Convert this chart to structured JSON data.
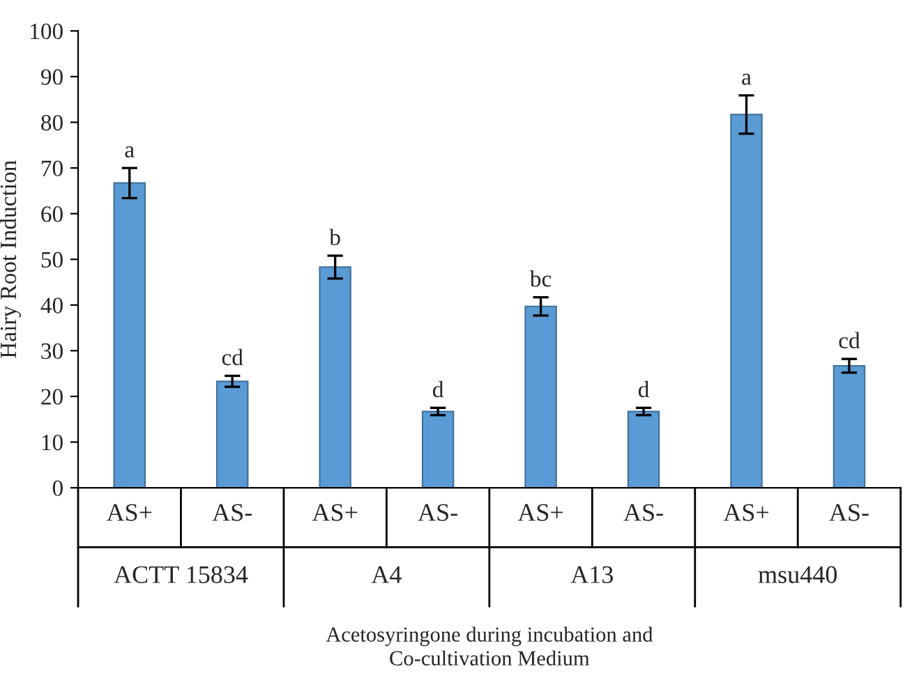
{
  "chart_data": {
    "type": "bar",
    "ylabel": "Hairy Root Induction",
    "xlabel": "Acetosyringone during incubation and\nCo-cultivation Medium",
    "categories": [
      "AS+",
      "AS-",
      "AS+",
      "AS-",
      "AS+",
      "AS-",
      "AS+",
      "AS-"
    ],
    "values": [
      66.7,
      23.3,
      48.3,
      16.7,
      39.7,
      16.7,
      81.7,
      26.7
    ],
    "errors": [
      3.3,
      1.2,
      2.5,
      0.8,
      2,
      0.8,
      4.2,
      1.5
    ],
    "value_labels": [
      "a",
      "cd",
      "b",
      "d",
      "bc",
      "d",
      "a",
      "cd"
    ],
    "color": "#5b9bd5",
    "ylim": [
      0,
      100
    ],
    "yticks": [
      0,
      10,
      20,
      30,
      40,
      50,
      60,
      70,
      80,
      90,
      100
    ],
    "annotations": [
      "ACTT 15834",
      "A4",
      "A13",
      "msu440"
    ],
    "grid": false,
    "legend": false
  }
}
